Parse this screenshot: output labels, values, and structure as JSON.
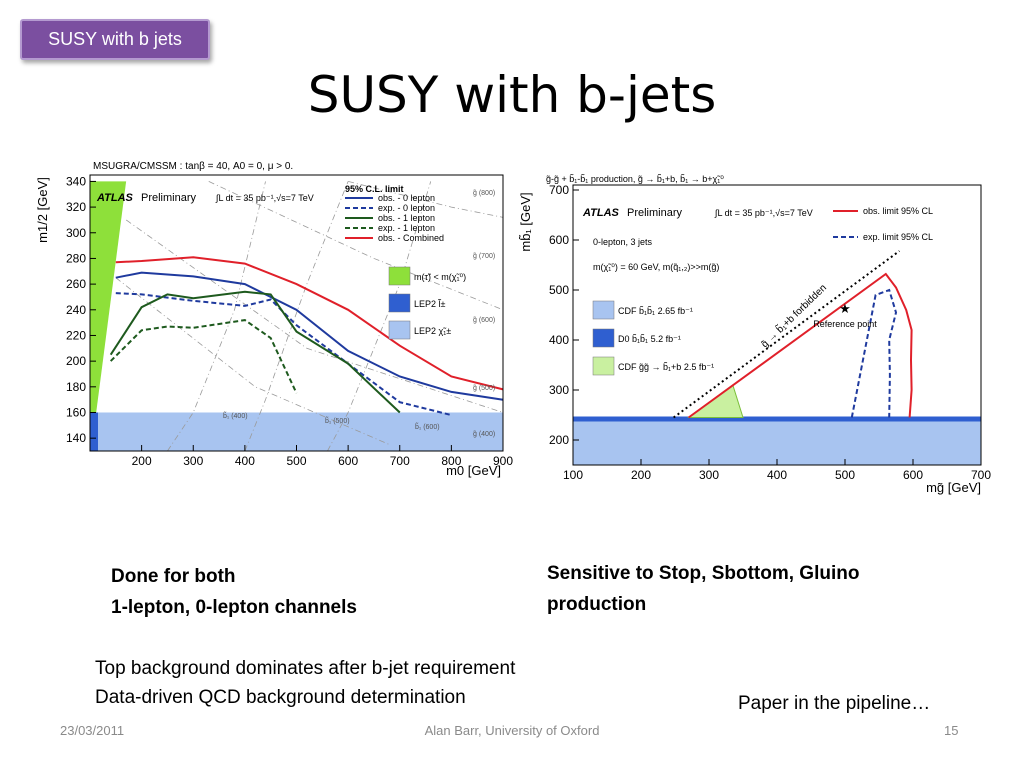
{
  "slide": {
    "tag": "SUSY with b jets",
    "title": "SUSY with b-jets",
    "caption_left": [
      "Done for both",
      "1-lepton, 0-lepton channels"
    ],
    "caption_right": [
      "Sensitive to Stop, Sbottom, Gluino",
      "production"
    ],
    "body_lines": [
      "Top background dominates after b-jet requirement",
      "Data-driven QCD background determination"
    ],
    "pipeline": "Paper in the pipeline…",
    "footer_date": "23/03/2011",
    "footer_author": "Alan Barr, University of Oxford",
    "footer_page": "15"
  },
  "colors": {
    "tag_bg": "#7b4fa0",
    "obs0": "#1f3a9e",
    "obs1": "#1e5a1e",
    "combined": "#e0202a",
    "lep2l": "#8ee03a",
    "lep2c": "#2f5fd0",
    "band": "#a8c4f0"
  },
  "chart_data": [
    {
      "type": "line",
      "header": "MSUGRA/CMSSM : tanβ = 40, A0 = 0, μ > 0.",
      "atlas": "ATLAS",
      "atlas_sub": "Preliminary",
      "lumi": "∫L dt = 35 pb⁻¹,√s=7 TeV",
      "legend_title": "95% C.L. limit",
      "xlabel": "m0 [GeV]",
      "ylabel": "m1/2 [GeV]",
      "xlim": [
        100,
        900
      ],
      "ylim": [
        130,
        345
      ],
      "xticks": [
        200,
        300,
        400,
        500,
        600,
        700,
        800,
        900
      ],
      "yticks": [
        140,
        160,
        180,
        200,
        220,
        240,
        260,
        280,
        300,
        320,
        340
      ],
      "series": [
        {
          "name": "obs. - 0 lepton",
          "style": "solid",
          "color": "#1f3a9e",
          "x": [
            150,
            200,
            300,
            400,
            500,
            600,
            700,
            800,
            900
          ],
          "y": [
            265,
            269,
            266,
            260,
            240,
            208,
            188,
            176,
            170
          ]
        },
        {
          "name": "exp. - 0 lepton",
          "style": "dashed",
          "color": "#1f3a9e",
          "x": [
            150,
            200,
            300,
            400,
            450,
            500,
            600,
            700,
            800
          ],
          "y": [
            253,
            252,
            247,
            243,
            248,
            228,
            198,
            168,
            158
          ]
        },
        {
          "name": "obs. - 1 lepton",
          "style": "solid",
          "color": "#1e5a1e",
          "x": [
            140,
            200,
            250,
            300,
            400,
            450,
            500,
            600,
            700
          ],
          "y": [
            205,
            242,
            252,
            249,
            254,
            252,
            223,
            198,
            160
          ]
        },
        {
          "name": "exp. - 1 lepton",
          "style": "dashed",
          "color": "#1e5a1e",
          "x": [
            140,
            200,
            250,
            300,
            400,
            450,
            500
          ],
          "y": [
            200,
            224,
            227,
            226,
            232,
            218,
            175
          ]
        },
        {
          "name": "obs. - Combined",
          "style": "solid",
          "color": "#e0202a",
          "x": [
            150,
            200,
            300,
            400,
            500,
            600,
            700,
            800,
            900
          ],
          "y": [
            277,
            278,
            281,
            276,
            260,
            240,
            212,
            188,
            178
          ]
        }
      ],
      "regions": [
        {
          "label": "m(τ̃) < m(χ̃₁⁰)",
          "color": "#8ee03a"
        },
        {
          "label": "LEP2 l̃±",
          "color": "#2f5fd0"
        },
        {
          "label": "LEP2 χ̃₁±",
          "color": "#a8c4f0"
        }
      ],
      "contour_labels": [
        "g̃ (800)",
        "g̃ (700)",
        "g̃ (600)",
        "g̃ (500)",
        "g̃ (400)",
        "b̃₁ (400)",
        "b̃₁ (500)",
        "b̃₁ (600)"
      ]
    },
    {
      "type": "line",
      "header": "g̃-g̃ + b̃₁-b̃₁ production, g̃ → b̃₁+b, b̃₁ → b+χ̃₁⁰",
      "atlas": "ATLAS",
      "atlas_sub": "Preliminary",
      "lumi": "∫L dt = 35 pb⁻¹,√s=7 TeV",
      "note1": "0-lepton, 3 jets",
      "note2": "m(χ̃₁⁰) = 60 GeV, m(q̃₁,₂)>>m(g̃)",
      "xlabel": "mg̃ [GeV]",
      "ylabel": "mb̃₁ [GeV]",
      "xlim": [
        100,
        700
      ],
      "ylim": [
        150,
        710
      ],
      "xticks": [
        100,
        200,
        300,
        400,
        500,
        600,
        700
      ],
      "yticks": [
        200,
        300,
        400,
        500,
        600,
        700
      ],
      "series": [
        {
          "name": "obs. limit 95% CL",
          "style": "solid",
          "color": "#e0202a",
          "x": [
            270,
            560,
            575,
            590,
            598,
            597,
            598,
            595
          ],
          "y": [
            245,
            532,
            505,
            460,
            420,
            360,
            300,
            245
          ]
        },
        {
          "name": "exp. limit 95% CL",
          "style": "dashed",
          "color": "#1f3a9e",
          "x": [
            510,
            545,
            565,
            575,
            565,
            566,
            565
          ],
          "y": [
            245,
            490,
            500,
            455,
            400,
            330,
            245
          ]
        },
        {
          "name": "kinematic boundary",
          "style": "dotted",
          "color": "#000000",
          "x": [
            248,
            580
          ],
          "y": [
            245,
            578
          ]
        }
      ],
      "regions": [
        {
          "label": "CDF b̃₁b̃₁ 2.65 fb⁻¹",
          "color": "#a8c4f0"
        },
        {
          "label": "D0 b̃₁b̃₁ 5.2 fb⁻¹",
          "color": "#2f5fd0"
        },
        {
          "label": "CDF g̃g̃ → b̃₁+b 2.5 fb⁻¹",
          "color": "#c9f0a0"
        }
      ],
      "reference_point": {
        "label": "Reference point",
        "x": 500,
        "y": 430
      },
      "forbidden_label": "g̃ → b̃₁+b forbidden"
    }
  ]
}
